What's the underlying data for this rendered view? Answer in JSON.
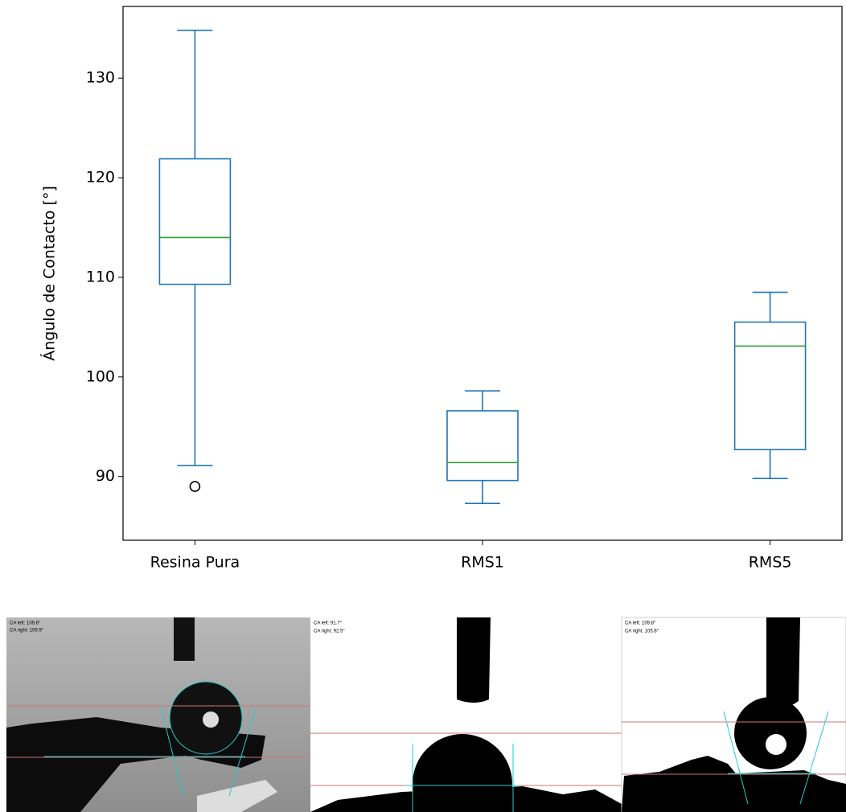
{
  "chart_data": {
    "type": "box",
    "y_label": "Ángulo de Contacto [°]",
    "categories": [
      "Resina Pura",
      "RMS1",
      "RMS5"
    ],
    "stats": [
      {
        "whislo": 91.1,
        "q1": 109.3,
        "med": 114.0,
        "q3": 121.9,
        "whishi": 134.8,
        "fliers": [
          89.0
        ]
      },
      {
        "whislo": 87.3,
        "q1": 89.6,
        "med": 91.4,
        "q3": 96.6,
        "whishi": 98.6,
        "fliers": []
      },
      {
        "whislo": 89.8,
        "q1": 92.7,
        "med": 103.1,
        "q3": 105.5,
        "whishi": 108.5,
        "fliers": []
      }
    ],
    "color": "#1f77b4",
    "median_color": "#2ca02c",
    "ylim": [
      83.6,
      137.2
    ],
    "yticks": [
      90,
      100,
      110,
      120,
      130
    ],
    "grid": false
  },
  "photos": [
    {
      "labels": [
        "CA left: 109.6°",
        "CA right: 109.9°"
      ]
    },
    {
      "labels": [
        "CA left: 91.7°",
        "CA right: 92.5°"
      ]
    },
    {
      "labels": [
        "CA left: 109.8°",
        "CA right: 105.8°"
      ]
    }
  ]
}
